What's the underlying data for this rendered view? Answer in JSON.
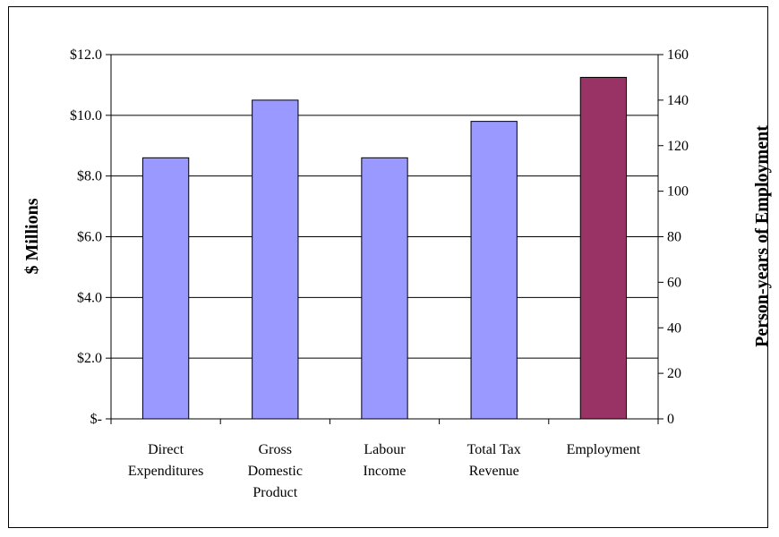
{
  "chart_data": {
    "type": "bar",
    "title": "",
    "categories": [
      [
        "Direct",
        "Expenditures"
      ],
      [
        "Gross",
        "Domestic",
        "Product"
      ],
      [
        "Labour",
        "Income"
      ],
      [
        "Total Tax",
        "Revenue"
      ],
      [
        "Employment"
      ]
    ],
    "series": [
      {
        "axis": "left",
        "color": "#9999ff",
        "values": [
          8.6,
          10.5,
          8.6,
          9.8,
          null
        ]
      },
      {
        "axis": "right",
        "color": "#993366",
        "values": [
          null,
          null,
          null,
          null,
          150
        ]
      }
    ],
    "y_left": {
      "label": "$ Millions",
      "lim": [
        0,
        12
      ],
      "ticks": [
        0,
        2,
        4,
        6,
        8,
        10,
        12
      ],
      "tick_labels": [
        "$-",
        "$2.0",
        "$4.0",
        "$6.0",
        "$8.0",
        "$10.0",
        "$12.0"
      ]
    },
    "y_right": {
      "label": "Person-years of Employment",
      "lim": [
        0,
        160
      ],
      "ticks": [
        0,
        20,
        40,
        60,
        80,
        100,
        120,
        140,
        160
      ],
      "tick_labels": [
        "0",
        "20",
        "40",
        "60",
        "80",
        "100",
        "120",
        "140",
        "160"
      ]
    },
    "grid": true,
    "legend": "none"
  }
}
